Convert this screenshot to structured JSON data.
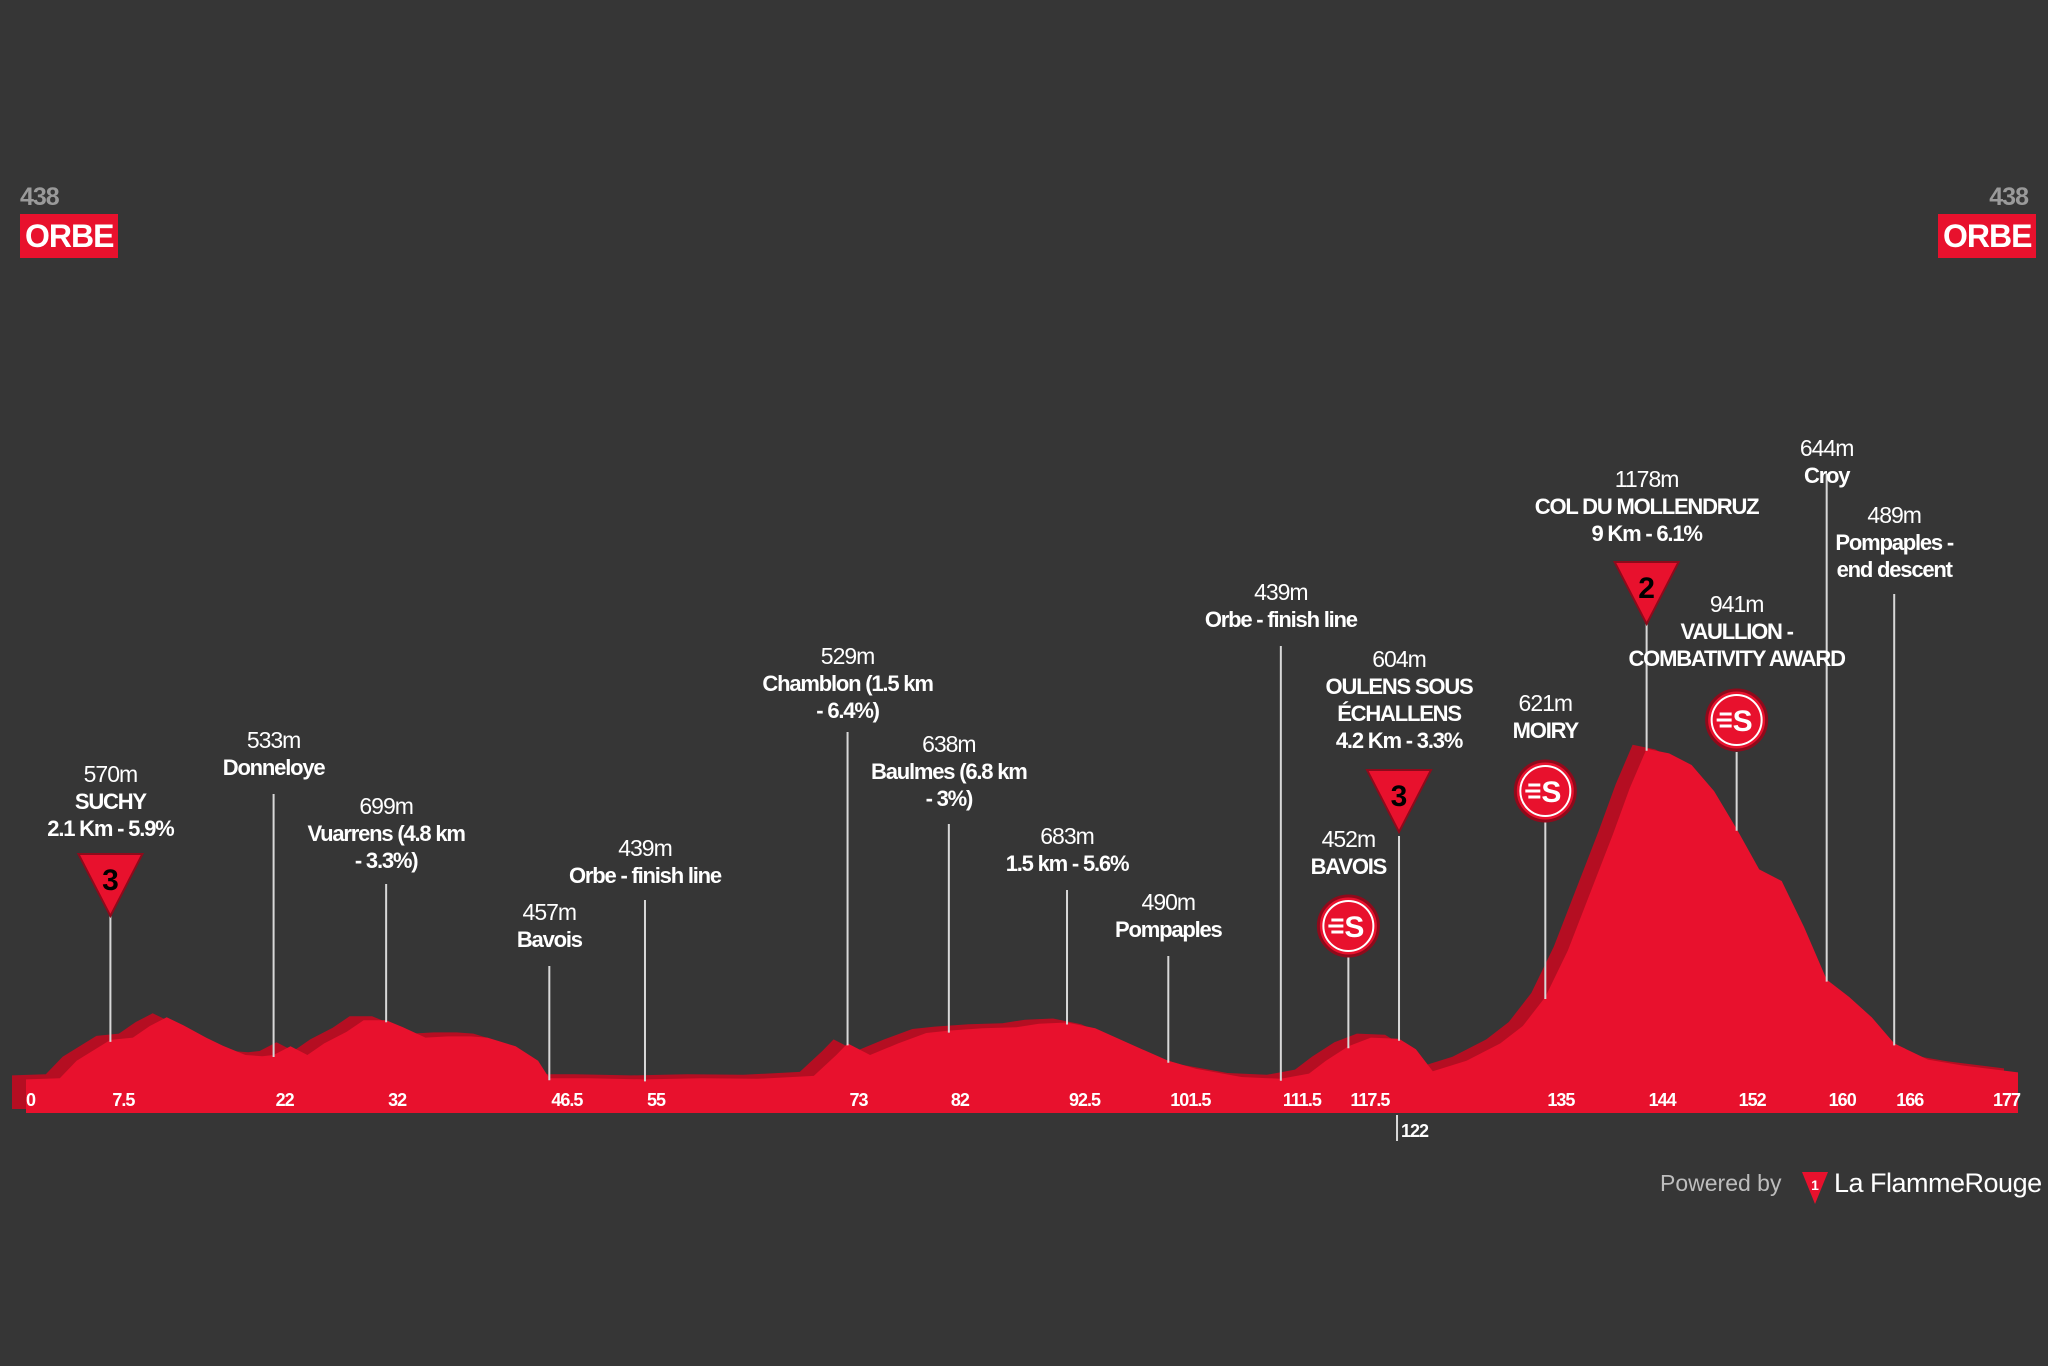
{
  "start": {
    "altitude": "438",
    "name": "ORBE"
  },
  "finish": {
    "altitude": "438",
    "name": "ORBE"
  },
  "credit": {
    "powered_by": "Powered by",
    "brand": "La FlammeRouge",
    "brand_logo_glyph": "1"
  },
  "colors": {
    "background": "#363636",
    "profile_fill": "#e8112d",
    "profile_shadow": "#b50e22",
    "line": "#d8d8d8"
  },
  "chart_data": {
    "type": "area",
    "xlim": [
      0,
      177
    ],
    "distance_ticks": [
      {
        "km": 0,
        "label": "0"
      },
      {
        "km": 7.5,
        "label": "7.5"
      },
      {
        "km": 22,
        "label": "22"
      },
      {
        "km": 32,
        "label": "32"
      },
      {
        "km": 46.5,
        "label": "46.5"
      },
      {
        "km": 55,
        "label": "55"
      },
      {
        "km": 73,
        "label": "73"
      },
      {
        "km": 82,
        "label": "82"
      },
      {
        "km": 92.5,
        "label": "92.5"
      },
      {
        "km": 101.5,
        "label": "101.5"
      },
      {
        "km": 111.5,
        "label": "111.5"
      },
      {
        "km": 117.5,
        "label": "117.5"
      },
      {
        "km": 135,
        "label": "135"
      },
      {
        "km": 144,
        "label": "144"
      },
      {
        "km": 152,
        "label": "152"
      },
      {
        "km": 160,
        "label": "160"
      },
      {
        "km": 166,
        "label": "166"
      },
      {
        "km": 177,
        "label": "177"
      }
    ],
    "sub_ticks": [
      {
        "km": 122,
        "label": "122"
      }
    ],
    "profile": {
      "x": [
        0,
        3,
        4.5,
        7.5,
        9.5,
        11,
        12.5,
        14,
        16,
        17.5,
        19.5,
        21,
        22,
        23.5,
        25,
        26.5,
        28.5,
        30,
        32,
        33.5,
        35.5,
        37.5,
        39.5,
        41,
        43.5,
        45.5,
        46.5,
        50,
        55,
        60,
        65,
        70,
        72,
        73,
        75,
        77.5,
        80,
        82,
        85,
        88,
        90,
        92.5,
        95,
        98,
        101.5,
        104,
        108,
        111.5,
        114,
        115.5,
        117.5,
        119.5,
        122,
        123.5,
        125,
        128,
        131,
        133,
        135,
        137,
        139,
        141,
        142.5,
        144,
        146,
        148,
        150,
        152,
        154,
        156,
        158,
        160,
        162,
        164,
        166,
        169,
        172,
        177
      ],
      "elevation": [
        438,
        440,
        470,
        506,
        510,
        530,
        545,
        531,
        510,
        496,
        480,
        478,
        480,
        495,
        480,
        500,
        520,
        540,
        540,
        528,
        510,
        512,
        512,
        510,
        495,
        470,
        440,
        440,
        438,
        440,
        439,
        444,
        480,
        500,
        480,
        500,
        518,
        522,
        526,
        528,
        534,
        536,
        526,
        500,
        470,
        456,
        442,
        439,
        448,
        470,
        495,
        510,
        508,
        490,
        452,
        470,
        500,
        530,
        580,
        660,
        760,
        860,
        940,
        1008,
        1000,
        980,
        935,
        870,
        800,
        780,
        700,
        610,
        580,
        545,
        500,
        472,
        462,
        450
      ]
    },
    "waypoints": [
      {
        "km": 7.5,
        "alt": "570m",
        "lines": [
          "SUCHY",
          "2.1 Km - 5.9%"
        ],
        "badge": "kom",
        "badge_text": "3"
      },
      {
        "km": 22,
        "alt": "533m",
        "lines": [
          "Donneloye"
        ]
      },
      {
        "km": 32,
        "alt": "699m",
        "lines": [
          "Vuarrens (4.8 km",
          "- 3.3%)"
        ]
      },
      {
        "km": 46.5,
        "alt": "457m",
        "lines": [
          "Bavois"
        ]
      },
      {
        "km": 55,
        "alt": "439m",
        "lines": [
          "Orbe - finish line"
        ]
      },
      {
        "km": 73,
        "alt": "529m",
        "lines": [
          "Chamblon (1.5 km",
          "- 6.4%)"
        ]
      },
      {
        "km": 82,
        "alt": "638m",
        "lines": [
          "Baulmes (6.8 km",
          "- 3%)"
        ]
      },
      {
        "km": 92.5,
        "alt": "683m",
        "lines": [
          "1.5 km - 5.6%"
        ]
      },
      {
        "km": 101.5,
        "alt": "490m",
        "lines": [
          "Pompaples"
        ]
      },
      {
        "km": 111.5,
        "alt": "439m",
        "lines": [
          "Orbe - finish line"
        ]
      },
      {
        "km": 117.5,
        "alt": "452m",
        "lines": [
          "BAVOIS"
        ],
        "badge": "sprint",
        "badge_text": "S"
      },
      {
        "km": 122,
        "alt": "604m",
        "lines": [
          "OULENS SOUS",
          "ÉCHALLENS",
          "4.2 Km - 3.3%"
        ],
        "badge": "kom",
        "badge_text": "3"
      },
      {
        "km": 135,
        "alt": "621m",
        "lines": [
          "MOIRY"
        ],
        "badge": "sprint",
        "badge_text": "S"
      },
      {
        "km": 144,
        "alt": "1178m",
        "lines": [
          "COL DU MOLLENDRUZ",
          "9 Km - 6.1%"
        ],
        "badge": "kom",
        "badge_text": "2"
      },
      {
        "km": 152,
        "alt": "941m",
        "lines": [
          "VAULLION -",
          "COMBATIVITY AWARD"
        ],
        "badge": "sprint",
        "badge_text": "S"
      },
      {
        "km": 160,
        "alt": "644m",
        "lines": [
          "Croy"
        ]
      },
      {
        "km": 166,
        "alt": "489m",
        "lines": [
          "Pompaples -",
          "end descent"
        ]
      }
    ]
  }
}
